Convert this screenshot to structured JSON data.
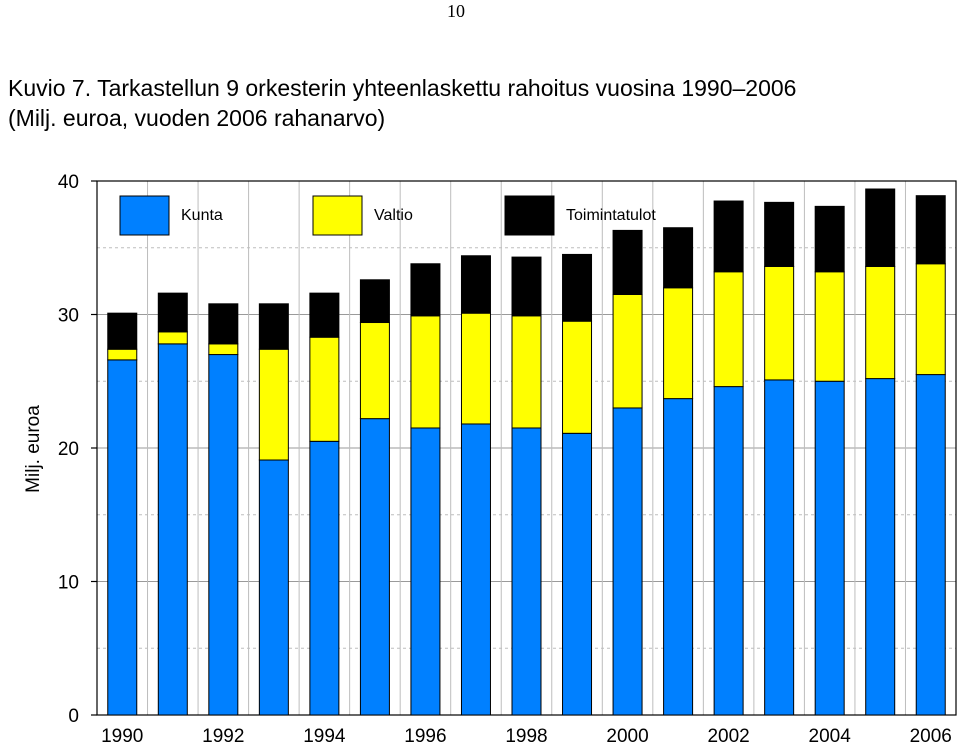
{
  "page_number": "10",
  "title_line1": "Kuvio 7. Tarkastellun 9 orkesterin yhteenlaskettu rahoitus vuosina 1990–2006",
  "title_line2": "(Milj. euroa, vuoden 2006 rahanarvo)",
  "chart_data": {
    "type": "bar",
    "stacked": true,
    "ylabel": "Milj. euroa",
    "ylim": [
      0,
      40
    ],
    "yticks": [
      0,
      10,
      20,
      30,
      40
    ],
    "grid": true,
    "legend_position": "top",
    "categories": [
      "1990",
      "1991",
      "1992",
      "1993",
      "1994",
      "1995",
      "1996",
      "1997",
      "1998",
      "1999",
      "2000",
      "2001",
      "2002",
      "2003",
      "2004",
      "2005",
      "2006"
    ],
    "x_tick_labels": [
      "1990",
      "1992",
      "1994",
      "1996",
      "1998",
      "2000",
      "2002",
      "2004",
      "2006"
    ],
    "series": [
      {
        "name": "Kunta",
        "color": "#0080FF",
        "values": [
          26.6,
          27.8,
          27.0,
          19.1,
          20.5,
          22.2,
          21.5,
          21.8,
          21.5,
          21.1,
          23.0,
          23.7,
          24.6,
          25.1,
          25.0,
          25.2,
          25.5
        ]
      },
      {
        "name": "Valtio",
        "color": "#FFFF00",
        "values": [
          0.8,
          0.9,
          0.8,
          8.3,
          7.8,
          7.2,
          8.4,
          8.3,
          8.4,
          8.4,
          8.5,
          8.3,
          8.6,
          8.5,
          8.2,
          8.4,
          8.3
        ]
      },
      {
        "name": "Toimintatulot",
        "color": "#000000",
        "values": [
          2.7,
          2.9,
          3.0,
          3.4,
          3.3,
          3.2,
          3.9,
          4.3,
          4.4,
          5.0,
          4.8,
          4.5,
          5.3,
          4.8,
          4.9,
          5.8,
          5.1
        ]
      }
    ]
  }
}
